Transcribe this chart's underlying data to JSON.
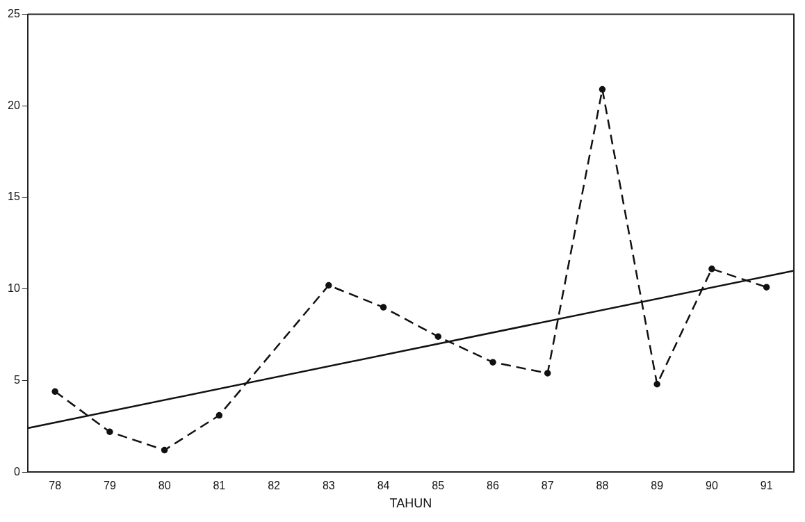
{
  "chart_data": {
    "type": "line",
    "xlabel": "TAHUN",
    "xlim": [
      77.5,
      91.5
    ],
    "xticks": [
      78,
      79,
      80,
      81,
      82,
      83,
      84,
      85,
      86,
      87,
      88,
      89,
      90,
      91
    ],
    "ylim": [
      0,
      25
    ],
    "yticks": [
      0,
      5,
      10,
      15,
      20,
      25
    ],
    "grid": false,
    "series": [
      {
        "color": "#111111",
        "line_style": "dashed",
        "marker": "circle",
        "x": [
          78,
          79,
          80,
          81,
          83,
          84,
          85,
          86,
          87,
          88,
          89,
          90,
          91
        ],
        "values": [
          4.4,
          2.2,
          1.2,
          3.1,
          10.2,
          9.0,
          7.4,
          6.0,
          5.4,
          20.9,
          4.8,
          11.1,
          10.1
        ]
      },
      {
        "color": "#111111",
        "line_style": "solid",
        "marker": "none",
        "x": [
          77.5,
          91.5
        ],
        "values": [
          2.4,
          11.0
        ]
      }
    ]
  }
}
